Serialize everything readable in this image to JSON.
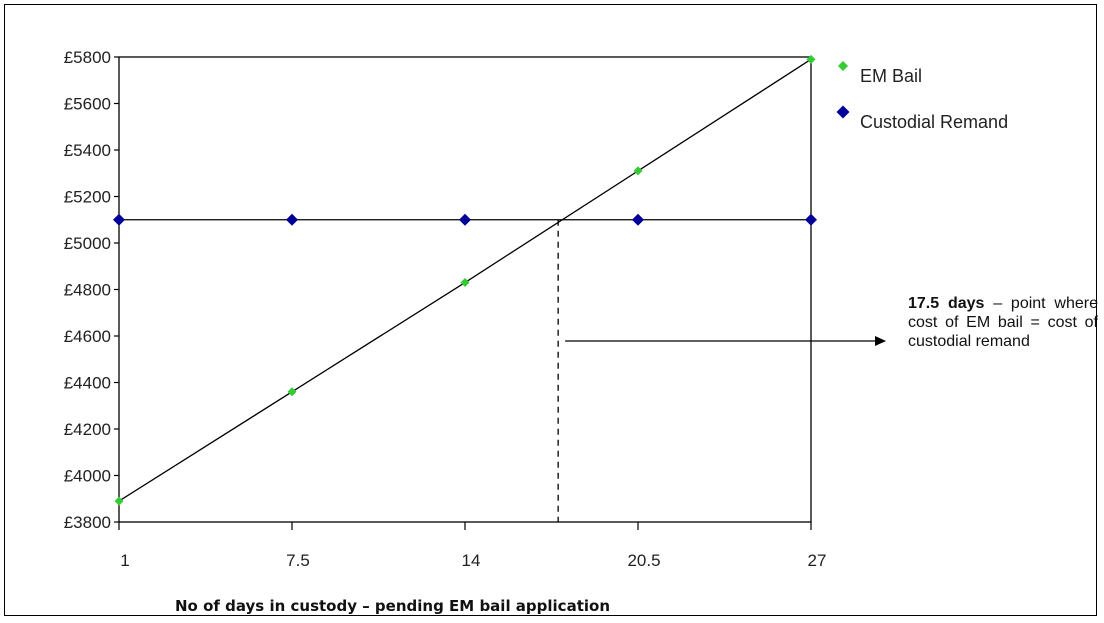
{
  "chart_data": {
    "type": "line",
    "title": "",
    "xlabel": "No of days in custody – pending EM bail application",
    "ylabel": "",
    "categories": [
      "1",
      "7.5",
      "14",
      "20.5",
      "27"
    ],
    "x": [
      1,
      7.5,
      14,
      20.5,
      27
    ],
    "ylim": [
      3800,
      5800
    ],
    "xlim": [
      1,
      27
    ],
    "yticks": [
      3800,
      4000,
      4200,
      4400,
      4600,
      4800,
      5000,
      5200,
      5400,
      5600,
      5800
    ],
    "ytick_labels": [
      "£3800",
      "£4000",
      "£4200",
      "£4400",
      "£4600",
      "£4800",
      "£5000",
      "£5200",
      "£5400",
      "£5600",
      "£5800"
    ],
    "grid": false,
    "legend_position": "top-right, outside plot",
    "series": [
      {
        "name": "EM Bail",
        "color": "#33cc33",
        "marker": "diamond",
        "values": [
          3890,
          4360,
          4830,
          5310,
          5790
        ]
      },
      {
        "name": "Custodial Remand",
        "color": "#000099",
        "marker": "diamond",
        "values": [
          5100,
          5100,
          5100,
          5100,
          5100
        ]
      }
    ],
    "line_color": "#000000",
    "intersection": {
      "x": 17.5,
      "y": 5100
    },
    "annotation": {
      "bold": "17.5 days",
      "text": " – point where cost of EM bail = cost of custodial remand"
    }
  }
}
